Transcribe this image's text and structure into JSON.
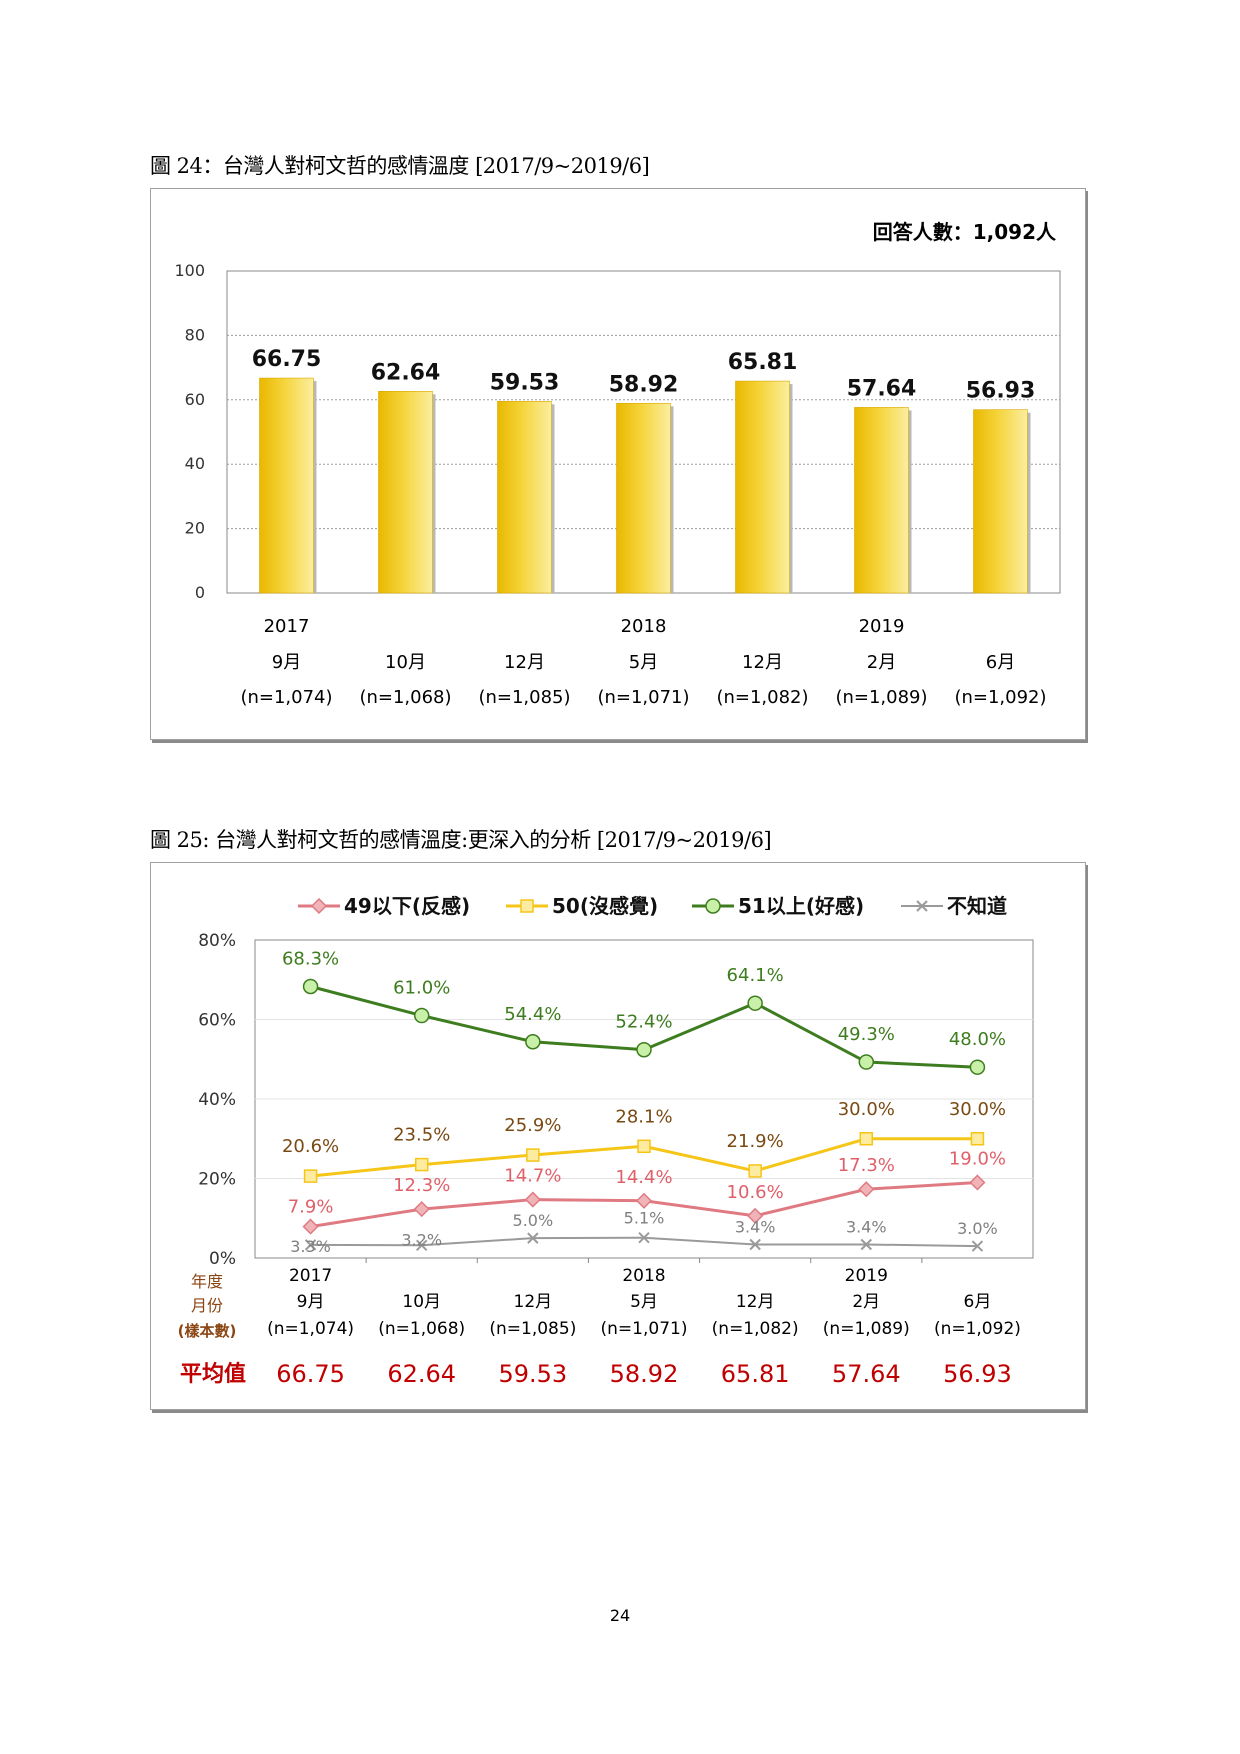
{
  "page_number": "24",
  "colors": {
    "bar_fill": "#f2cf2a",
    "series_negative": "#e07a82",
    "series_neutral": "#f5c518",
    "series_positive": "#3e7d1f",
    "series_unknown": "#9a9a9a",
    "avg_value": "#c00000",
    "sample_label": "#8b4513",
    "respondents": "#4a7bd4"
  },
  "chart_data": [
    {
      "type": "bar",
      "caption": "圖 24：台灣人對柯文哲的感情溫度 [2017/9~2019/6]",
      "respondents_note": "回答人數：1,092人",
      "categories": [
        {
          "year": "2017",
          "month": "9月",
          "sample": "(n=1,074)"
        },
        {
          "year": "",
          "month": "10月",
          "sample": "(n=1,068)"
        },
        {
          "year": "",
          "month": "12月",
          "sample": "(n=1,085)"
        },
        {
          "year": "2018",
          "month": "5月",
          "sample": "(n=1,071)"
        },
        {
          "year": "",
          "month": "12月",
          "sample": "(n=1,082)"
        },
        {
          "year": "2019",
          "month": "2月",
          "sample": "(n=1,089)"
        },
        {
          "year": "",
          "month": "6月",
          "sample": "(n=1,092)"
        }
      ],
      "values": [
        66.75,
        62.64,
        59.53,
        58.92,
        65.81,
        57.64,
        56.93
      ],
      "value_labels": [
        "66.75",
        "62.64",
        "59.53",
        "58.92",
        "65.81",
        "57.64",
        "56.93"
      ],
      "ylim": [
        0,
        100
      ],
      "yticks": [
        "0",
        "20",
        "40",
        "60",
        "80",
        "100"
      ],
      "grid": true
    },
    {
      "type": "line",
      "caption": "圖 25: 台灣人對柯文哲的感情溫度:更深入的分析 [2017/9~2019/6]",
      "ylim": [
        0,
        80
      ],
      "yticks": [
        "0%",
        "20%",
        "40%",
        "60%",
        "80%"
      ],
      "grid": true,
      "legend_position": "top",
      "row_labels": {
        "year": "年度",
        "month": "月份",
        "sample": "(樣本數)",
        "avg": "平均值"
      },
      "categories": [
        {
          "year": "2017",
          "month": "9月",
          "sample": "(n=1,074)"
        },
        {
          "year": "",
          "month": "10月",
          "sample": "(n=1,068)"
        },
        {
          "year": "",
          "month": "12月",
          "sample": "(n=1,085)"
        },
        {
          "year": "2018",
          "month": "5月",
          "sample": "(n=1,071)"
        },
        {
          "year": "",
          "month": "12月",
          "sample": "(n=1,082)"
        },
        {
          "year": "2019",
          "month": "2月",
          "sample": "(n=1,089)"
        },
        {
          "year": "",
          "month": "6月",
          "sample": "(n=1,092)"
        }
      ],
      "averages": [
        "66.75",
        "62.64",
        "59.53",
        "58.92",
        "65.81",
        "57.64",
        "56.93"
      ],
      "series": [
        {
          "name": "49以下(反感)",
          "marker": "diamond",
          "color": "#e07a82",
          "values": [
            7.9,
            12.3,
            14.7,
            14.4,
            10.6,
            17.3,
            19.0
          ],
          "labels": [
            "7.9%",
            "12.3%",
            "14.7%",
            "14.4%",
            "10.6%",
            "17.3%",
            "19.0%"
          ]
        },
        {
          "name": "50(沒感覺)",
          "marker": "square",
          "color": "#f5c518",
          "values": [
            20.6,
            23.5,
            25.9,
            28.1,
            21.9,
            30.0,
            30.0
          ],
          "labels": [
            "20.6%",
            "23.5%",
            "25.9%",
            "28.1%",
            "21.9%",
            "30.0%",
            "30.0%"
          ]
        },
        {
          "name": "51以上(好感)",
          "marker": "circle",
          "color": "#3e7d1f",
          "values": [
            68.3,
            61.0,
            54.4,
            52.4,
            64.1,
            49.3,
            48.0
          ],
          "labels": [
            "68.3%",
            "61.0%",
            "54.4%",
            "52.4%",
            "64.1%",
            "49.3%",
            "48.0%"
          ]
        },
        {
          "name": "不知道",
          "marker": "cross",
          "color": "#9a9a9a",
          "values": [
            3.3,
            3.2,
            5.0,
            5.1,
            3.4,
            3.4,
            3.0
          ],
          "labels": [
            "3.3%",
            "3.2%",
            "5.0%",
            "5.1%",
            "3.4%",
            "3.4%",
            "3.0%"
          ]
        }
      ]
    }
  ]
}
